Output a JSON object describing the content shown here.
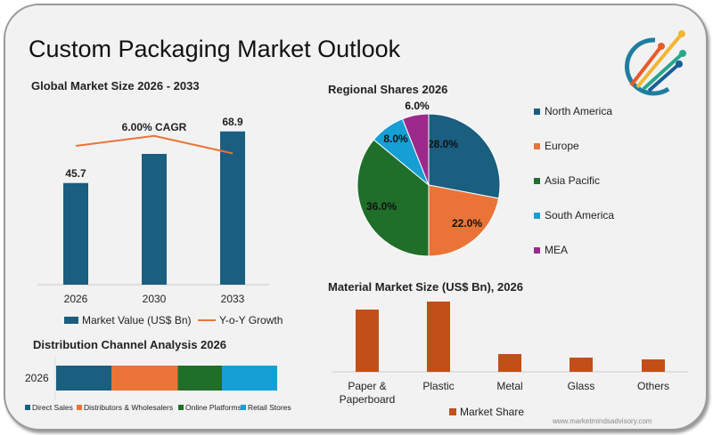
{
  "title": "Custom Packaging Market Outlook",
  "website": "www.marketmindsadvisory.com",
  "colors": {
    "blue": "#1a5e80",
    "orange": "#ea7437",
    "green": "#1f6f2a",
    "lightblue": "#169fd4",
    "purple": "#9b2a8c",
    "rust": "#c24f18"
  },
  "chart_data": [
    {
      "type": "bar",
      "title": "Global Market Size 2026 - 2033",
      "categories": [
        "2026",
        "2030",
        "2033"
      ],
      "series": [
        {
          "name": "Market Value (US$ Bn)",
          "values": [
            45.7,
            58.8,
            68.9
          ],
          "labels": [
            "45.7",
            "",
            "68.9"
          ]
        },
        {
          "name": "Y-o-Y Growth",
          "type": "line",
          "values": [
            6.2,
            6.6,
            5.9
          ]
        }
      ],
      "annotation": "6.00% CAGR",
      "legend": "bottom"
    },
    {
      "type": "pie",
      "title": "Regional Shares 2026",
      "categories": [
        "North America",
        "Europe",
        "Asia Pacific",
        "South America",
        "MEA"
      ],
      "values": [
        28.0,
        22.0,
        36.0,
        8.0,
        6.0
      ],
      "labels": [
        "28.0%",
        "22.0%",
        "36.0%",
        "8.0%",
        "6.0%"
      ],
      "legend": "right"
    },
    {
      "type": "bar",
      "orientation": "horizontal-stacked",
      "title": "Distribution Channel Analysis 2026",
      "categories": [
        "2026"
      ],
      "series": [
        {
          "name": "Direct Sales",
          "values": [
            25
          ]
        },
        {
          "name": "Distributors & Wholesalers",
          "values": [
            30
          ]
        },
        {
          "name": "Online Platforms",
          "values": [
            20
          ]
        },
        {
          "name": "Retail Stores",
          "values": [
            25
          ]
        }
      ],
      "legend": "bottom"
    },
    {
      "type": "bar",
      "title": "Material Market Size (US$ Bn), 2026",
      "categories": [
        "Paper & Paperboard",
        "Plastic",
        "Metal",
        "Glass",
        "Others"
      ],
      "category_lines": [
        [
          "Paper &",
          "Paperboard"
        ],
        [
          "Plastic"
        ],
        [
          "Metal"
        ],
        [
          "Glass"
        ],
        [
          "Others"
        ]
      ],
      "series": [
        {
          "name": "Market Share",
          "values": [
            70,
            79,
            20,
            16,
            14
          ]
        }
      ],
      "legend": "bottom"
    }
  ]
}
